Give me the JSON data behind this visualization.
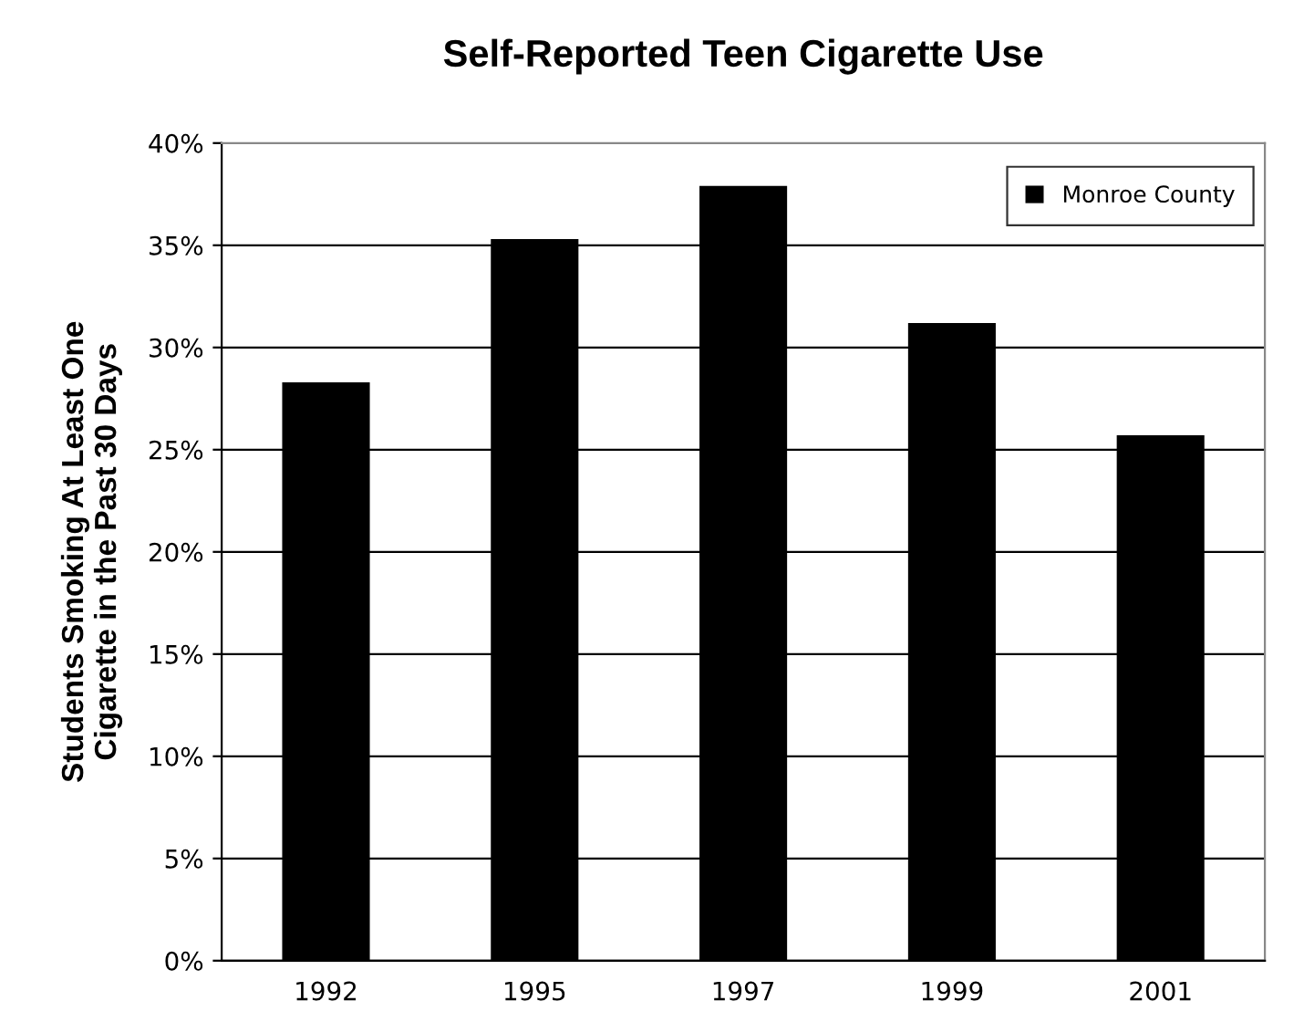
{
  "chart_data": {
    "type": "bar",
    "title": "Self-Reported Teen Cigarette Use",
    "ylabel": "Students Smoking At Least One\nCigarette in the Past 30 Days",
    "categories": [
      "1992",
      "1995",
      "1997",
      "1999",
      "2001"
    ],
    "series": [
      {
        "name": "Monroe County",
        "color": "#000000",
        "values": [
          28.3,
          35.3,
          37.9,
          31.2,
          25.7
        ]
      }
    ],
    "ylim": [
      0,
      40
    ],
    "yticks": [
      {
        "value": 0,
        "label": "0%"
      },
      {
        "value": 5,
        "label": "5%"
      },
      {
        "value": 10,
        "label": "10%"
      },
      {
        "value": 15,
        "label": "15%"
      },
      {
        "value": 20,
        "label": "20%"
      },
      {
        "value": 25,
        "label": "25%"
      },
      {
        "value": 30,
        "label": "30%"
      },
      {
        "value": 35,
        "label": "35%"
      },
      {
        "value": 40,
        "label": "40%"
      }
    ],
    "grid": "y",
    "legend": "top right"
  }
}
